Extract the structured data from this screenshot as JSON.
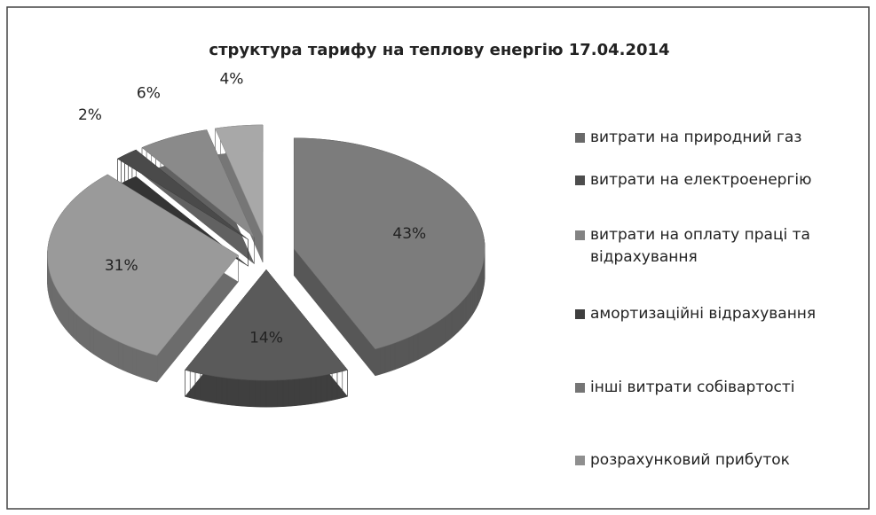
{
  "chart_data": {
    "type": "pie",
    "title": "структура тарифу на теплову енергію  17.04.2014",
    "categories": [
      "витрати на природний газ",
      "витрати на електроенергію",
      "витрати на оплату праці та відрахування",
      "амортизаційні відрахування",
      "інші витрати  собівартості",
      "розрахунковий прибуток"
    ],
    "values": [
      43,
      14,
      31,
      2,
      6,
      4
    ],
    "value_labels": [
      "43%",
      "14%",
      "31%",
      "2%",
      "6%",
      "4%"
    ],
    "colors": [
      "#7c7c7c",
      "#5a5a5a",
      "#9a9a9a",
      "#4a4a4a",
      "#8a8a8a",
      "#a8a8a8"
    ],
    "legend": "right"
  }
}
